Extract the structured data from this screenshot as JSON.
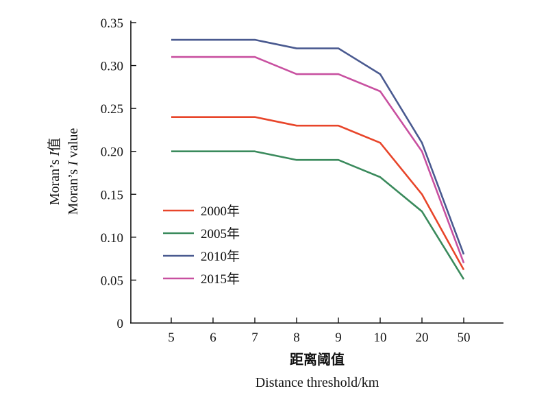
{
  "chart_data": {
    "type": "line",
    "categories": [
      "5",
      "6",
      "7",
      "8",
      "9",
      "10",
      "20",
      "50"
    ],
    "ylim": [
      0,
      0.35
    ],
    "y_ticks": [
      "0",
      "0.05",
      "0.10",
      "0.15",
      "0.20",
      "0.25",
      "0.30",
      "0.35"
    ],
    "xlabel_cn": "距离阈值",
    "xlabel_en": "Distance threshold/km",
    "ylabel_cn_prefix": "Moran’s ",
    "ylabel_cn_italic": "I",
    "ylabel_cn_suffix": "值",
    "ylabel_en_prefix": "Moran’s ",
    "ylabel_en_italic": "I",
    "ylabel_en_suffix": " value",
    "grid": false,
    "legend_position": "lower-left",
    "series": [
      {
        "name": "2000年",
        "color": "#e8452a",
        "values": [
          0.24,
          0.24,
          0.24,
          0.23,
          0.23,
          0.21,
          0.15,
          0.062
        ]
      },
      {
        "name": "2005年",
        "color": "#3a8a5c",
        "values": [
          0.2,
          0.2,
          0.2,
          0.19,
          0.19,
          0.17,
          0.13,
          0.051
        ]
      },
      {
        "name": "2010年",
        "color": "#4a5a90",
        "values": [
          0.33,
          0.33,
          0.33,
          0.32,
          0.32,
          0.29,
          0.21,
          0.08
        ]
      },
      {
        "name": "2015年",
        "color": "#c850a0",
        "values": [
          0.31,
          0.31,
          0.31,
          0.29,
          0.29,
          0.27,
          0.2,
          0.07
        ]
      }
    ]
  }
}
